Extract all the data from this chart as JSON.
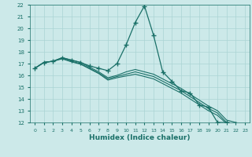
{
  "xlabel": "Humidex (Indice chaleur)",
  "xlim": [
    -0.5,
    23.5
  ],
  "ylim": [
    12,
    22
  ],
  "yticks": [
    12,
    13,
    14,
    15,
    16,
    17,
    18,
    19,
    20,
    21,
    22
  ],
  "xticks": [
    0,
    1,
    2,
    3,
    4,
    5,
    6,
    7,
    8,
    9,
    10,
    11,
    12,
    13,
    14,
    15,
    16,
    17,
    18,
    19,
    20,
    21,
    22,
    23
  ],
  "bg_color": "#cce9e9",
  "line_color": "#1a7068",
  "grid_color": "#aad4d4",
  "series": [
    {
      "x": [
        0,
        1,
        2,
        3,
        4,
        5,
        6,
        7,
        8,
        9,
        10,
        11,
        12,
        13,
        14,
        15,
        16,
        17,
        18,
        19,
        20,
        21,
        22,
        23
      ],
      "y": [
        16.6,
        17.1,
        17.2,
        17.5,
        17.3,
        17.1,
        16.8,
        16.6,
        16.4,
        17.0,
        18.6,
        20.5,
        21.9,
        19.4,
        16.3,
        15.5,
        14.7,
        14.5,
        13.5,
        13.3,
        12.0,
        12.0,
        11.9,
        null
      ],
      "marker": true
    },
    {
      "x": [
        0,
        1,
        2,
        3,
        4,
        5,
        6,
        7,
        8,
        9,
        10,
        11,
        12,
        13,
        14,
        15,
        16,
        17,
        18,
        19,
        20,
        21,
        22,
        23
      ],
      "y": [
        16.6,
        17.1,
        17.2,
        17.5,
        17.3,
        17.1,
        16.7,
        16.3,
        15.8,
        16.0,
        16.3,
        16.5,
        16.3,
        16.1,
        15.7,
        15.3,
        14.9,
        14.4,
        13.9,
        13.4,
        13.0,
        12.2,
        12.0,
        11.8
      ],
      "marker": false
    },
    {
      "x": [
        0,
        1,
        2,
        3,
        4,
        5,
        6,
        7,
        8,
        9,
        10,
        11,
        12,
        13,
        14,
        15,
        16,
        17,
        18,
        19,
        20,
        21,
        22,
        23
      ],
      "y": [
        16.6,
        17.1,
        17.2,
        17.45,
        17.2,
        17.0,
        16.6,
        16.2,
        15.7,
        15.9,
        16.1,
        16.3,
        16.1,
        15.9,
        15.5,
        15.1,
        14.7,
        14.2,
        13.7,
        13.2,
        12.8,
        12.0,
        11.9,
        11.7
      ],
      "marker": false
    },
    {
      "x": [
        0,
        1,
        2,
        3,
        4,
        5,
        6,
        7,
        8,
        9,
        10,
        11,
        12,
        13,
        14,
        15,
        16,
        17,
        18,
        19,
        20,
        21,
        22,
        23
      ],
      "y": [
        16.6,
        17.1,
        17.2,
        17.4,
        17.15,
        16.95,
        16.55,
        16.15,
        15.6,
        15.8,
        15.95,
        16.1,
        15.9,
        15.7,
        15.3,
        14.9,
        14.5,
        14.0,
        13.5,
        13.0,
        12.6,
        11.9,
        11.85,
        11.6
      ],
      "marker": false
    }
  ]
}
